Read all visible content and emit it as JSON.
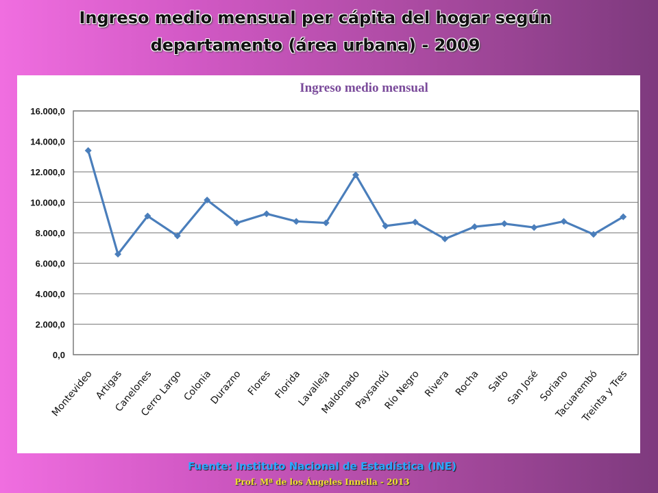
{
  "slide": {
    "title_line1": "Ingreso medio mensual per cápita del hogar según",
    "title_line2": "departamento (área urbana) - 2009",
    "source": "Fuente: Instituto Nacional de Estadística  (INE)",
    "author": "Prof.  Mª de los Ángeles Innella - 2013"
  },
  "chart_data": {
    "type": "line",
    "title": "Ingreso medio mensual",
    "xlabel": "",
    "ylabel": "",
    "ylim": [
      0,
      16000
    ],
    "yticks": [
      0,
      2000,
      4000,
      6000,
      8000,
      10000,
      12000,
      14000,
      16000
    ],
    "ytick_labels": [
      "0,0",
      "2.000,0",
      "4.000,0",
      "6.000,0",
      "8.000,0",
      "10.000,0",
      "12.000,0",
      "14.000,0",
      "16.000,0"
    ],
    "grid": true,
    "categories": [
      "Montevideo",
      "Artigas",
      "Canelones",
      "Cerro Largo",
      "Colonia",
      "Durazno",
      "Flores",
      "Florida",
      "Lavalleja",
      "Maldonado",
      "Paysandú",
      "Río Negro",
      "Rivera",
      "Rocha",
      "Salto",
      "San José",
      "Soriano",
      "Tacuarembó",
      "Treinta y Tres"
    ],
    "series": [
      {
        "values": [
          13400,
          6600,
          9100,
          7800,
          10150,
          8650,
          9250,
          8750,
          8650,
          11800,
          8450,
          8700,
          7600,
          8400,
          8600,
          8350,
          8750,
          7900,
          9050
        ],
        "color": "#4a7ebb"
      }
    ],
    "colors": {
      "title": "#7a4a9a",
      "line": "#4a7ebb",
      "grid": "#8c8c8c"
    }
  }
}
